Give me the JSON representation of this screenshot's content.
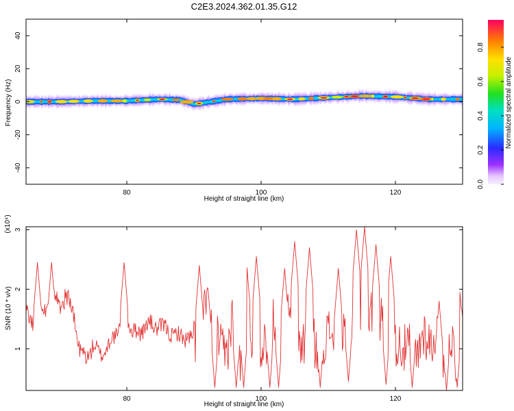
{
  "figure": {
    "title": "C2E3.2024.362.01.35.G12"
  },
  "chart_data": [
    {
      "type": "heatmap",
      "title": "C2E3.2024.362.01.35.G12",
      "xlabel": "Height of straight line (km)",
      "ylabel": "Frequency (Hz)",
      "xlim": [
        65,
        130
      ],
      "ylim": [
        -50,
        50
      ],
      "x_ticks": [
        80,
        100,
        120
      ],
      "y_ticks": [
        -40,
        -20,
        0,
        20,
        40
      ],
      "colorbar": {
        "label": "Normalized spectral amplitude",
        "range": [
          0,
          0.96
        ],
        "ticks": [
          0.0,
          0.2,
          0.4,
          0.6,
          0.8
        ]
      },
      "band_center_hz": [
        [
          65,
          0.0
        ],
        [
          70,
          0.0
        ],
        [
          75,
          0.5
        ],
        [
          80,
          0.5
        ],
        [
          85,
          1.5
        ],
        [
          88,
          1.0
        ],
        [
          90,
          -1.5
        ],
        [
          95,
          1.5
        ],
        [
          100,
          2.0
        ],
        [
          105,
          1.5
        ],
        [
          110,
          2.5
        ],
        [
          115,
          3.5
        ],
        [
          120,
          3.0
        ],
        [
          125,
          1.5
        ],
        [
          130,
          1.5
        ]
      ],
      "grid": false
    },
    {
      "type": "line",
      "xlabel": "Height of straight line (km)",
      "ylabel": "SNR (10 * v/v)",
      "y_scale_label": "(x10⁴)",
      "xlim": [
        65,
        130
      ],
      "ylim": [
        0.3,
        3.05
      ],
      "x_ticks": [
        80,
        100,
        120
      ],
      "y_ticks": [
        1,
        2,
        3
      ],
      "color": "#e03030",
      "grid": false,
      "anchors": [
        [
          65,
          1.65
        ],
        [
          66,
          1.4
        ],
        [
          67,
          1.8
        ],
        [
          68,
          1.6
        ],
        [
          69,
          1.85
        ],
        [
          70,
          1.75
        ],
        [
          71,
          1.9
        ],
        [
          72,
          1.6
        ],
        [
          72.5,
          1.3
        ],
        [
          73,
          0.95
        ],
        [
          74,
          0.85
        ],
        [
          75,
          1.05
        ],
        [
          76,
          0.9
        ],
        [
          77,
          1.0
        ],
        [
          78,
          1.2
        ],
        [
          79,
          1.35
        ],
        [
          80,
          1.5
        ],
        [
          81,
          1.3
        ],
        [
          82,
          1.25
        ],
        [
          83,
          1.45
        ],
        [
          84,
          1.35
        ],
        [
          85,
          1.4
        ],
        [
          86,
          1.3
        ],
        [
          87,
          1.25
        ],
        [
          88,
          1.2
        ],
        [
          89,
          1.2
        ],
        [
          90,
          1.1
        ],
        [
          91,
          1.25
        ],
        [
          92,
          1.6
        ],
        [
          93,
          1.3
        ],
        [
          94,
          0.9
        ],
        [
          95,
          1.1
        ],
        [
          96,
          1.45
        ],
        [
          97,
          0.9
        ],
        [
          98,
          1.1
        ],
        [
          99,
          1.4
        ],
        [
          100,
          0.9
        ],
        [
          101,
          1.3
        ],
        [
          102,
          1.4
        ],
        [
          103,
          1.1
        ],
        [
          104,
          1.45
        ],
        [
          105,
          1.3
        ],
        [
          106,
          0.9
        ],
        [
          107,
          1.4
        ],
        [
          108,
          0.9
        ],
        [
          109,
          1.2
        ],
        [
          110,
          1.1
        ],
        [
          111,
          1.5
        ],
        [
          112,
          1.0
        ],
        [
          113,
          1.3
        ],
        [
          114,
          1.6
        ],
        [
          115,
          1.8
        ],
        [
          116,
          1.4
        ],
        [
          117,
          1.6
        ],
        [
          118,
          1.3
        ],
        [
          119,
          1.5
        ],
        [
          120,
          0.9
        ],
        [
          121,
          1.2
        ],
        [
          122,
          0.9
        ],
        [
          123,
          1.0
        ],
        [
          124,
          1.1
        ],
        [
          125,
          1.25
        ],
        [
          126,
          1.05
        ],
        [
          127,
          1.0
        ],
        [
          128,
          1.1
        ],
        [
          129,
          0.9
        ],
        [
          130,
          1.3
        ]
      ],
      "peaks": [
        [
          66.7,
          2.45
        ],
        [
          68.8,
          2.45
        ],
        [
          79.6,
          2.45
        ],
        [
          90.8,
          2.4
        ],
        [
          92.1,
          2.0
        ],
        [
          97.8,
          2.5
        ],
        [
          99.3,
          2.55
        ],
        [
          103.5,
          2.35
        ],
        [
          105.0,
          2.8
        ],
        [
          107.2,
          2.7
        ],
        [
          111.5,
          2.35
        ],
        [
          114.2,
          3.0
        ],
        [
          115.4,
          3.05
        ],
        [
          117.1,
          2.75
        ],
        [
          119.3,
          2.55
        ],
        [
          126.5,
          1.8
        ],
        [
          129.6,
          1.95
        ]
      ],
      "dips": [
        [
          93.1,
          0.35
        ],
        [
          96.3,
          0.35
        ],
        [
          97.4,
          0.35
        ],
        [
          101.3,
          0.35
        ],
        [
          102.6,
          0.35
        ],
        [
          108.8,
          0.35
        ],
        [
          113.0,
          0.45
        ],
        [
          118.6,
          0.4
        ],
        [
          122.5,
          0.35
        ],
        [
          127.6,
          0.3
        ],
        [
          129.2,
          0.35
        ]
      ]
    }
  ]
}
